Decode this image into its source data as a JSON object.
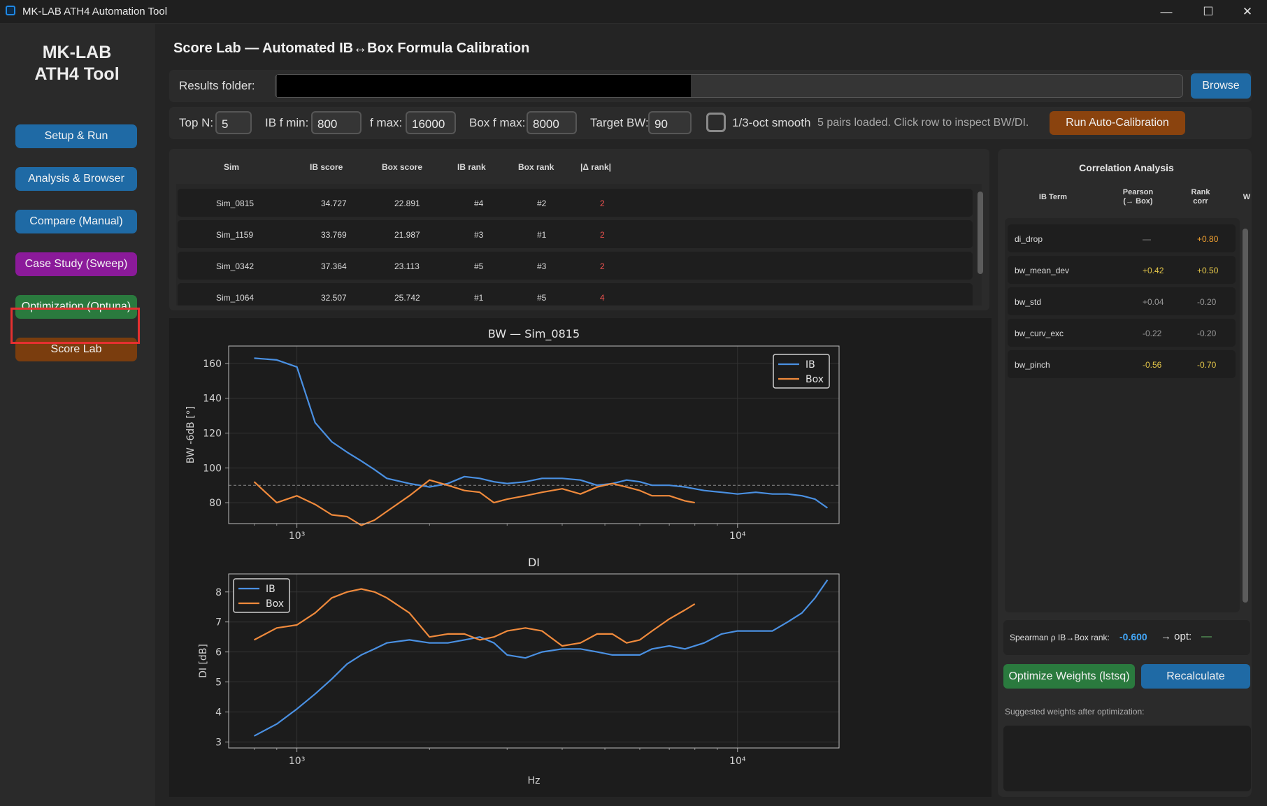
{
  "window": {
    "title": "MK-LAB ATH4 Automation Tool",
    "min": "—",
    "max": "☐",
    "close": "✕"
  },
  "sidebar": {
    "logo_line1": "MK-LAB",
    "logo_line2": "ATH4 Tool",
    "items": [
      {
        "label": "Setup & Run",
        "color": "#1f6aa5"
      },
      {
        "label": "Analysis & Browser",
        "color": "#1f6aa5"
      },
      {
        "label": "Compare (Manual)",
        "color": "#1f6aa5"
      },
      {
        "label": "Case Study (Sweep)",
        "color": "#8b1a9a"
      },
      {
        "label": "Optimization (Optuna)",
        "color": "#2a7a3e"
      },
      {
        "label": "Score Lab",
        "color": "#7a3d0e",
        "active": true
      }
    ]
  },
  "main": {
    "title": "Score Lab  —  Automated IB↔Box Formula Calibration",
    "folder": {
      "label": "Results folder:",
      "value": "",
      "browse": "Browse"
    },
    "params": {
      "top_n_label": "Top N:",
      "top_n": "5",
      "ib_fmin_label": "IB f min:",
      "ib_fmin": "800",
      "fmax_label": "f max:",
      "fmax": "16000",
      "box_fmax_label": "Box f max:",
      "box_fmax": "8000",
      "target_bw_label": "Target BW:",
      "target_bw": "90",
      "smooth_label": "1/3-oct smooth",
      "status": "5 pairs loaded. Click row to inspect BW/DI.",
      "run": "Run Auto-Calibration"
    },
    "table": {
      "headers": [
        "Sim",
        "IB score",
        "Box score",
        "IB rank",
        "Box rank",
        "|Δ rank|"
      ],
      "rows": [
        [
          "Sim_0815",
          "34.727",
          "22.891",
          "#4",
          "#2",
          "2"
        ],
        [
          "Sim_1159",
          "33.769",
          "21.987",
          "#3",
          "#1",
          "2"
        ],
        [
          "Sim_0342",
          "37.364",
          "23.113",
          "#5",
          "#3",
          "2"
        ],
        [
          "Sim_1064",
          "32.507",
          "25.742",
          "#1",
          "#5",
          "4"
        ]
      ]
    }
  },
  "chart_data": [
    {
      "type": "line",
      "title": "BW  —  Sim_0815",
      "xlabel": "",
      "ylabel": "BW -6dB [°]",
      "xscale": "log",
      "xlim": [
        700,
        17000
      ],
      "ylim": [
        68,
        170
      ],
      "yticks": [
        80,
        100,
        120,
        140,
        160
      ],
      "xtick_labels": [
        "10³",
        "10⁴"
      ],
      "reference_line": 90,
      "grid": true,
      "legend": "top-right",
      "series": [
        {
          "name": "IB",
          "color": "#4a90e2",
          "x": [
            800,
            900,
            1000,
            1100,
            1200,
            1300,
            1400,
            1500,
            1600,
            1800,
            2000,
            2200,
            2400,
            2600,
            2800,
            3000,
            3300,
            3600,
            4000,
            4400,
            4800,
            5200,
            5600,
            6000,
            6400,
            7000,
            7600,
            8400,
            9200,
            10000,
            11000,
            12000,
            13000,
            14000,
            15000,
            16000
          ],
          "y": [
            163,
            162,
            158,
            126,
            115,
            109,
            104,
            99,
            94,
            91,
            89,
            91,
            95,
            94,
            92,
            91,
            92,
            94,
            94,
            93,
            90,
            91,
            93,
            92,
            90,
            90,
            89,
            87,
            86,
            85,
            86,
            85,
            85,
            84,
            82,
            77
          ]
        },
        {
          "name": "Box",
          "color": "#f08a3c",
          "x": [
            800,
            900,
            1000,
            1100,
            1200,
            1300,
            1400,
            1500,
            1600,
            1800,
            2000,
            2200,
            2400,
            2600,
            2800,
            3000,
            3300,
            3600,
            4000,
            4400,
            4800,
            5200,
            5600,
            6000,
            6400,
            7000,
            7600,
            8000
          ],
          "y": [
            92,
            80,
            84,
            79,
            73,
            72,
            67,
            70,
            75,
            84,
            93,
            90,
            87,
            86,
            80,
            82,
            84,
            86,
            88,
            85,
            89,
            91,
            89,
            87,
            84,
            84,
            81,
            80
          ]
        }
      ]
    },
    {
      "type": "line",
      "title": "DI",
      "xlabel": "Hz",
      "ylabel": "DI [dB]",
      "xscale": "log",
      "xlim": [
        700,
        17000
      ],
      "ylim": [
        2.8,
        8.6
      ],
      "yticks": [
        3,
        4,
        5,
        6,
        7,
        8
      ],
      "xtick_labels": [
        "10³",
        "10⁴"
      ],
      "grid": true,
      "legend": "top-left",
      "series": [
        {
          "name": "IB",
          "color": "#4a90e2",
          "x": [
            800,
            900,
            1000,
            1100,
            1200,
            1300,
            1400,
            1500,
            1600,
            1800,
            2000,
            2200,
            2400,
            2600,
            2800,
            3000,
            3300,
            3600,
            4000,
            4400,
            4800,
            5200,
            5600,
            6000,
            6400,
            7000,
            7600,
            8400,
            9200,
            10000,
            11000,
            12000,
            13000,
            14000,
            15000,
            16000
          ],
          "y": [
            3.2,
            3.6,
            4.1,
            4.6,
            5.1,
            5.6,
            5.9,
            6.1,
            6.3,
            6.4,
            6.3,
            6.3,
            6.4,
            6.5,
            6.3,
            5.9,
            5.8,
            6.0,
            6.1,
            6.1,
            6.0,
            5.9,
            5.9,
            5.9,
            6.1,
            6.2,
            6.1,
            6.3,
            6.6,
            6.7,
            6.7,
            6.7,
            7.0,
            7.3,
            7.8,
            8.4
          ]
        },
        {
          "name": "Box",
          "color": "#f08a3c",
          "x": [
            800,
            900,
            1000,
            1100,
            1200,
            1300,
            1400,
            1500,
            1600,
            1800,
            2000,
            2200,
            2400,
            2600,
            2800,
            3000,
            3300,
            3600,
            4000,
            4400,
            4800,
            5200,
            5600,
            6000,
            6400,
            7000,
            7600,
            8000
          ],
          "y": [
            6.4,
            6.8,
            6.9,
            7.3,
            7.8,
            8.0,
            8.1,
            8.0,
            7.8,
            7.3,
            6.5,
            6.6,
            6.6,
            6.4,
            6.5,
            6.7,
            6.8,
            6.7,
            6.2,
            6.3,
            6.6,
            6.6,
            6.3,
            6.4,
            6.7,
            7.1,
            7.4,
            7.6
          ]
        }
      ]
    }
  ],
  "correlation": {
    "title": "Correlation Analysis",
    "headers": {
      "term": "IB Term",
      "pearson_1": "Pearson",
      "pearson_2": "(→ Box)",
      "rank_1": "Rank",
      "rank_2": "corr",
      "weight": "W"
    },
    "rows": [
      {
        "term": "di_drop",
        "pearson": "—",
        "rank": "+0.80",
        "pearson_color": "#9a9a9a",
        "rank_color": "#f0a030"
      },
      {
        "term": "bw_mean_dev",
        "pearson": "+0.42",
        "rank": "+0.50",
        "pearson_color": "#e6c84a",
        "rank_color": "#e6c84a"
      },
      {
        "term": "bw_std",
        "pearson": "+0.04",
        "rank": "-0.20",
        "pearson_color": "#9a9a9a",
        "rank_color": "#9a9a9a"
      },
      {
        "term": "bw_curv_exc",
        "pearson": "-0.22",
        "rank": "-0.20",
        "pearson_color": "#9a9a9a",
        "rank_color": "#9a9a9a"
      },
      {
        "term": "bw_pinch",
        "pearson": "-0.56",
        "rank": "-0.70",
        "pearson_color": "#e6c84a",
        "rank_color": "#e6c84a"
      }
    ],
    "spearman_label": "Spearman ρ  IB→Box rank:",
    "spearman_value": "-0.600",
    "opt_label": "→ opt:",
    "opt_value": "—",
    "optimize": "Optimize Weights (lstsq)",
    "recalculate": "Recalculate",
    "suggested_label": "Suggested weights after optimization:"
  }
}
